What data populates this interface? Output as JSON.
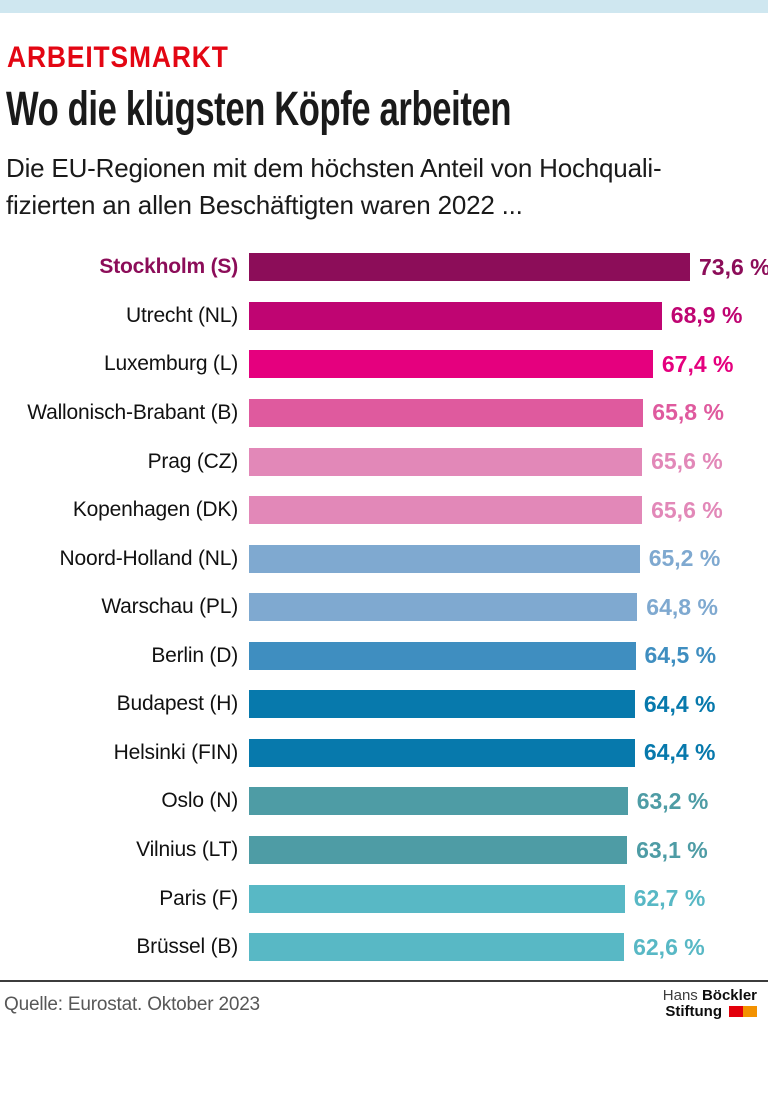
{
  "page": {
    "top_strip_color": "#cfe7f0",
    "background": "#ffffff"
  },
  "header": {
    "kicker": "ARBEITSMARKT",
    "kicker_color": "#e30613",
    "title": "Wo die klügsten Köpfe arbeiten",
    "subtitle_line1": "Die EU-Regionen mit dem höchsten Anteil von Hochquali-",
    "subtitle_line2": "fizierten an allen Beschäftigten waren 2022 ..."
  },
  "chart_data": {
    "type": "bar",
    "orientation": "horizontal",
    "unit": "%",
    "grid": false,
    "legend": false,
    "xlim": [
      0,
      73.6
    ],
    "categories": [
      "Stockholm (S)",
      "Utrecht (NL)",
      "Luxemburg (L)",
      "Wallonisch-Brabant (B)",
      "Prag (CZ)",
      "Kopenhagen (DK)",
      "Noord-Holland (NL)",
      "Warschau (PL)",
      "Berlin (D)",
      "Budapest (H)",
      "Helsinki (FIN)",
      "Oslo (N)",
      "Vilnius (LT)",
      "Paris (F)",
      "Brüssel (B)"
    ],
    "values": [
      73.6,
      68.9,
      67.4,
      65.8,
      65.6,
      65.6,
      65.2,
      64.8,
      64.5,
      64.4,
      64.4,
      63.2,
      63.1,
      62.7,
      62.6
    ],
    "value_labels": [
      "73,6 %",
      "68,9 %",
      "67,4 %",
      "65,8 %",
      "65,6 %",
      "65,6 %",
      "65,2 %",
      "64,8 %",
      "64,5 %",
      "64,4 %",
      "64,4 %",
      "63,2 %",
      "63,1 %",
      "62,7 %",
      "62,6 %"
    ],
    "bar_colors": [
      "#8c0d59",
      "#bf0572",
      "#e5007e",
      "#df5a9e",
      "#e288b8",
      "#e288b8",
      "#7fa9d0",
      "#7fa9d0",
      "#3f8ec0",
      "#0779ac",
      "#0779ac",
      "#4e9ca5",
      "#4e9ca5",
      "#58b8c5",
      "#58b8c5"
    ],
    "highlight_index": 0,
    "highlight_label_color": "#8c0d59"
  },
  "footer": {
    "source": "Quelle: Eurostat. Oktober 2023",
    "logo": {
      "name_regular": "Hans",
      "name_bold": "Böckler",
      "line2_bold": "Stiftung",
      "square_colors": [
        "#e3000b",
        "#f39200"
      ]
    }
  }
}
